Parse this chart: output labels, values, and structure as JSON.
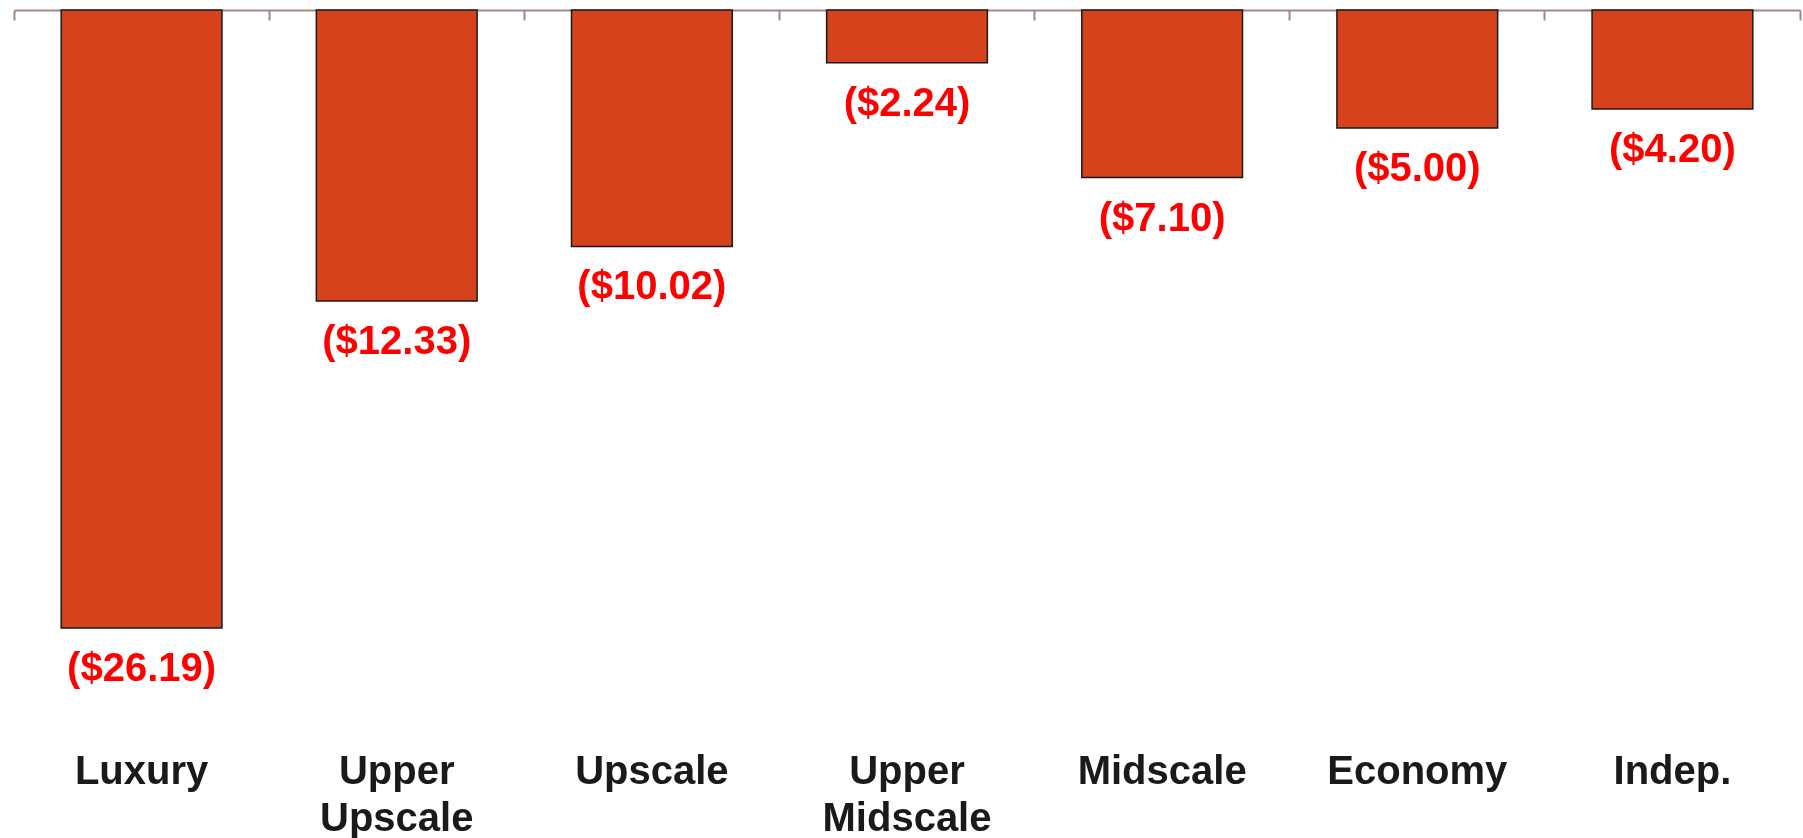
{
  "chart_data": {
    "type": "bar",
    "categories": [
      "Luxury",
      "Upper Upscale",
      "Upscale",
      "Upper Midscale",
      "Midscale",
      "Economy",
      "Indep."
    ],
    "values": [
      -26.19,
      -12.33,
      -10.02,
      -2.24,
      -7.1,
      -5.0,
      -4.2
    ],
    "value_labels": [
      "($26.19)",
      "($12.33)",
      "($10.02)",
      "($2.24)",
      "($7.10)",
      "($5.00)",
      "($4.20)"
    ],
    "color": "#d5421b",
    "tick_labels": "x"
  }
}
